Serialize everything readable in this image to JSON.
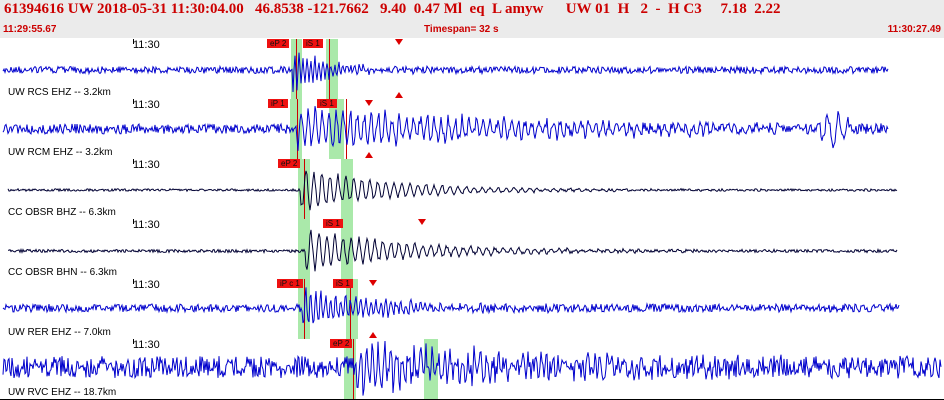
{
  "header": {
    "event_line": "61394616 UW 2018-05-31 11:30:04.00   46.8538 -121.7662   9.40  0.47 Ml  eq  L amyw      UW 01  H   2  -  H C3     7.18  2.22",
    "start_time": "11:29:55.67",
    "timespan": "Timespan=  32 s",
    "end_time": "11:30:27.49"
  },
  "colors": {
    "header_text": "#cc0000",
    "trace": "#0000cc",
    "trace_bh": "#000033",
    "pick_band": "#9be59b",
    "pick_flag": "#ee1111"
  },
  "panels": [
    {
      "station": "UW RCS EHZ -- 3.2km",
      "time_label": "11:30",
      "trace_color": "#0000cc",
      "picks": [
        {
          "label": "eP 2"
        },
        {
          "label": "iS 1"
        }
      ]
    },
    {
      "station": "UW RCM EHZ -- 3.2km",
      "time_label": "11:30",
      "trace_color": "#0000cc",
      "picks": [
        {
          "label": "iP 1"
        },
        {
          "label": "iS 1"
        }
      ]
    },
    {
      "station": "CC OBSR BHZ -- 6.3km",
      "time_label": "11:30",
      "trace_color": "#000033",
      "picks": [
        {
          "label": "eP 2"
        }
      ]
    },
    {
      "station": "CC OBSR BHN -- 6.3km",
      "time_label": "11:30",
      "trace_color": "#000033",
      "picks": [
        {
          "label": "iS 1"
        }
      ]
    },
    {
      "station": "UW RER EHZ -- 7.0km",
      "time_label": "11:30",
      "trace_color": "#0000cc",
      "picks": [
        {
          "label": "iP c 1"
        },
        {
          "label": "iS 1"
        }
      ]
    },
    {
      "station": "UW RVC EHZ -- 18.7km",
      "time_label": "11:30",
      "trace_color": "#0000cc",
      "picks": [
        {
          "label": "eP 2"
        }
      ]
    }
  ]
}
